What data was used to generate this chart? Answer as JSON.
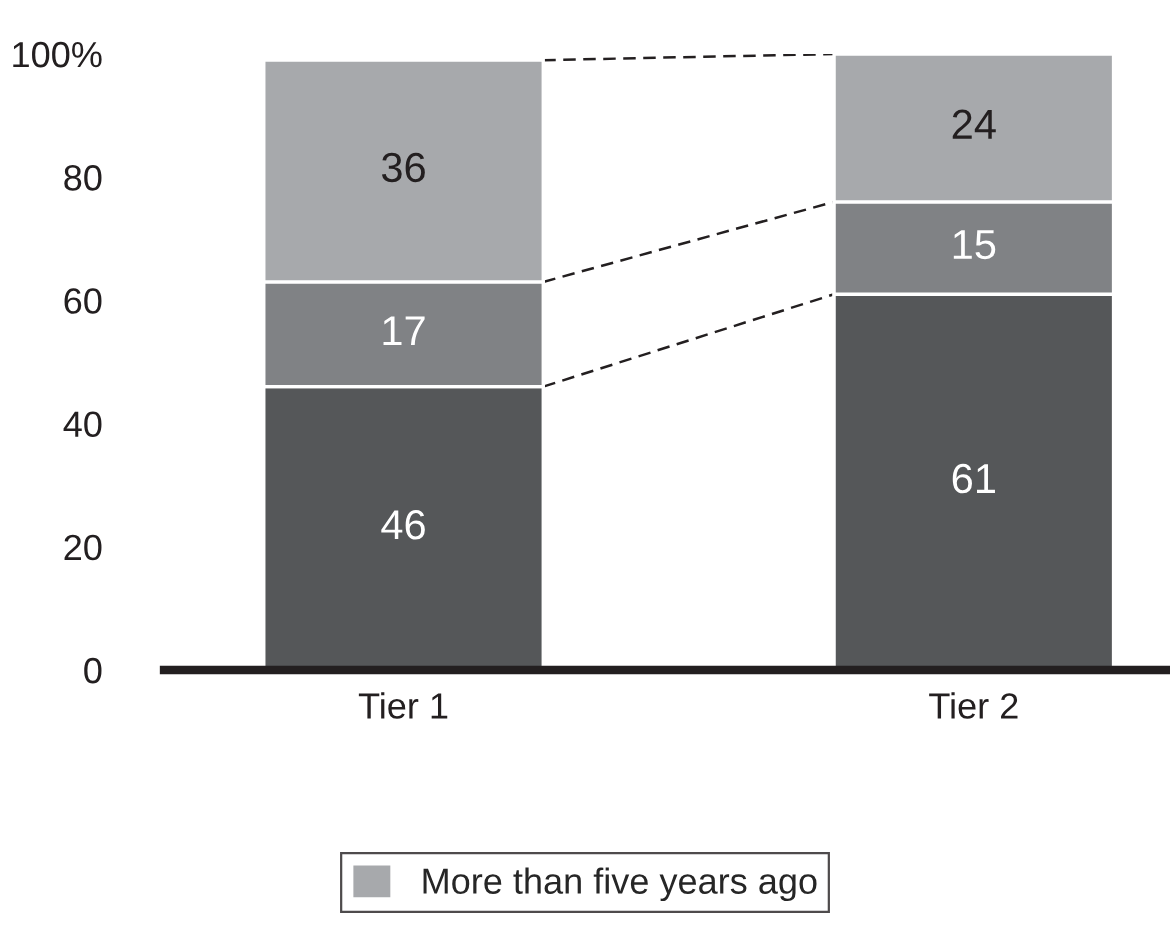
{
  "chart_data": {
    "type": "bar",
    "stacked": true,
    "data_labels": true,
    "line_style": "dashed",
    "categories": [
      "Tier 1",
      "Tier 2"
    ],
    "series": [
      {
        "color": "#555759",
        "values": [
          46,
          61
        ]
      },
      {
        "color": "#808285",
        "values": [
          17,
          15
        ]
      },
      {
        "name": "More than five years ago",
        "color": "#a7a9ac",
        "values": [
          36,
          24
        ]
      }
    ],
    "ylim": [
      0,
      100
    ],
    "yticks": [
      0,
      20,
      40,
      60,
      80,
      {
        "value": 100,
        "label": "100%"
      }
    ],
    "grid": false,
    "legend": "bottom"
  }
}
